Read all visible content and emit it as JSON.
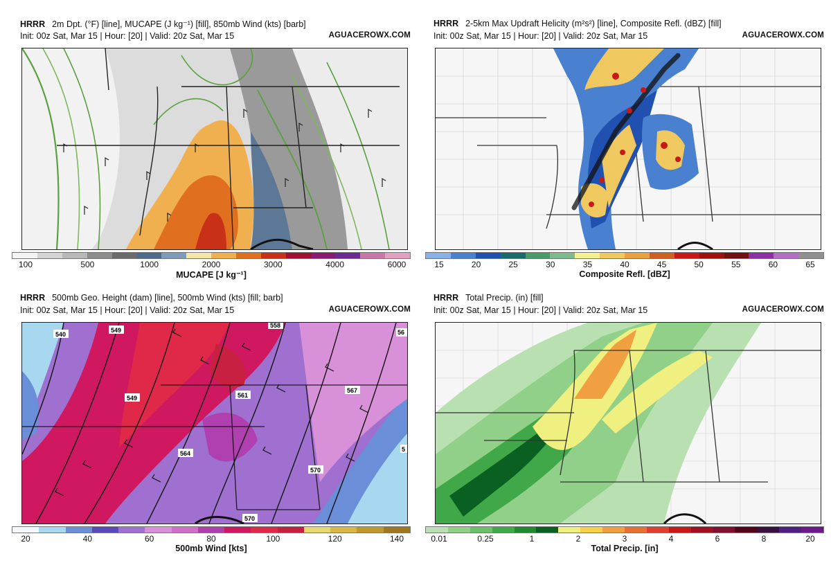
{
  "panels": [
    {
      "model": "HRRR",
      "title": "2m Dpt. (°F) [line], MUCAPE (J kg⁻¹) [fill], 850mb Wind (kts) [barb]",
      "init": "Init: 00z Sat, Mar 15 | Hour: [20] | Valid: 20z Sat, Mar 15",
      "brand": "AGUACEROWX.COM",
      "colorbar": {
        "label": "MUCAPE [J kg⁻¹]",
        "colors": [
          "#f4f4f4",
          "#d4d4d4",
          "#b8b8b8",
          "#8c8c8c",
          "#6b6b6b",
          "#4f6b8a",
          "#7e9bb8",
          "#f5e6a8",
          "#f0b050",
          "#e07020",
          "#c83018",
          "#a01030",
          "#8a1a70",
          "#6a2a90",
          "#c878a8",
          "#e0a0c0"
        ],
        "ticks": [
          "100",
          "500",
          "1000",
          "2000",
          "3000",
          "4000",
          "6000"
        ]
      },
      "contour_labels": []
    },
    {
      "model": "HRRR",
      "title": "2-5km Max Updraft Helicity (m²s²) [line], Composite Refl. (dBZ) [fill]",
      "init": "Init: 00z Sat, Mar 15 | Hour: [20] | Valid: 20z Sat, Mar 15",
      "brand": "AGUACEROWX.COM",
      "colorbar": {
        "label": "Composite Refl. [dBZ]",
        "colors": [
          "#8ab0e8",
          "#4a80d0",
          "#2050b0",
          "#1a6a6a",
          "#4a9a6a",
          "#80b890",
          "#f5f090",
          "#f0c860",
          "#e8a040",
          "#d06020",
          "#c81818",
          "#a01010",
          "#701010",
          "#8a30a0",
          "#b070c0",
          "#909090"
        ],
        "ticks": [
          "15",
          "20",
          "25",
          "30",
          "35",
          "40",
          "45",
          "50",
          "55",
          "60",
          "65"
        ]
      },
      "contour_labels": []
    },
    {
      "model": "HRRR",
      "title": "500mb Geo. Height (dam) [line], 500mb Wind (kts) [fill; barb]",
      "init": "Init: 00z Sat, Mar 15 | Hour: [20] | Valid: 20z Sat, Mar 15",
      "brand": "AGUACEROWX.COM",
      "colorbar": {
        "label": "500mb Wind [kts]",
        "colors": [
          "#f2f8fc",
          "#a8d8f0",
          "#6a8ed8",
          "#5a4ab8",
          "#a070d0",
          "#d890d8",
          "#d070c8",
          "#b040b0",
          "#d01860",
          "#e02848",
          "#c82040",
          "#e8d870",
          "#d8b848",
          "#c09830",
          "#a07820"
        ],
        "ticks": [
          "20",
          "40",
          "60",
          "80",
          "100",
          "120",
          "140"
        ]
      },
      "contour_labels": [
        "540",
        "549",
        "549",
        "558",
        "561",
        "564",
        "567",
        "570",
        "570",
        "56",
        "5"
      ]
    },
    {
      "model": "HRRR",
      "title": "Total Precip. (in) [fill]",
      "init": "Init: 00z Sat, Mar 15 | Hour: [20] | Valid: 20z Sat, Mar 15",
      "brand": "AGUACEROWX.COM",
      "colorbar": {
        "label": "Total Precip. [in]",
        "colors": [
          "#b8e0b0",
          "#90d088",
          "#6cc06c",
          "#40a848",
          "#208a30",
          "#0a6020",
          "#f0f080",
          "#f8d048",
          "#f0a040",
          "#e87030",
          "#e04030",
          "#c81818",
          "#a01020",
          "#801030",
          "#500818",
          "#381040",
          "#502080",
          "#6a1a8a"
        ],
        "ticks": [
          "0.01",
          "0.25",
          "1",
          "2",
          "3",
          "4",
          "6",
          "8",
          "20"
        ]
      },
      "contour_labels": []
    }
  ]
}
